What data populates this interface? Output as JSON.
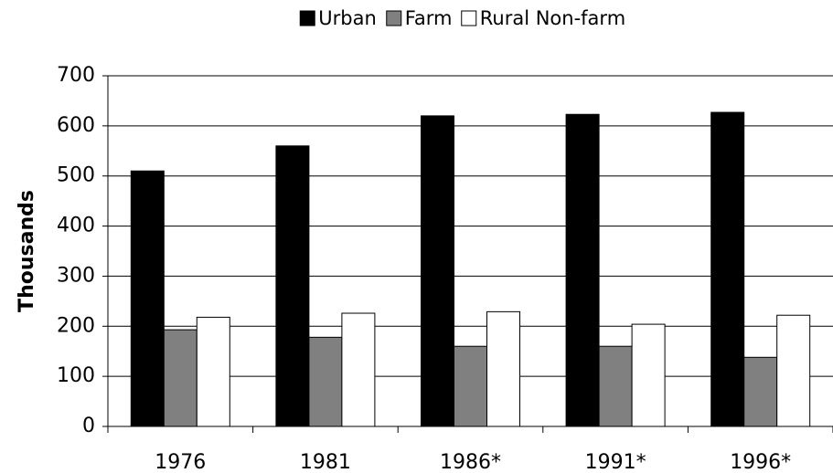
{
  "chart_data": {
    "type": "bar",
    "y_label": "Thousands",
    "categories": [
      "1976",
      "1981",
      "1986*",
      "1991*",
      "1996*"
    ],
    "series": [
      {
        "name": "Urban",
        "color": "#000000",
        "values": [
          510,
          560,
          620,
          623,
          627
        ]
      },
      {
        "name": "Farm",
        "color": "#808080",
        "values": [
          193,
          178,
          160,
          160,
          138
        ]
      },
      {
        "name": "Rural Non-farm",
        "color": "#ffffff",
        "values": [
          218,
          226,
          229,
          204,
          222
        ]
      }
    ],
    "ylim": [
      0,
      700
    ],
    "yticks": [
      0,
      100,
      200,
      300,
      400,
      500,
      600,
      700
    ],
    "grid": true,
    "legend": "top"
  }
}
